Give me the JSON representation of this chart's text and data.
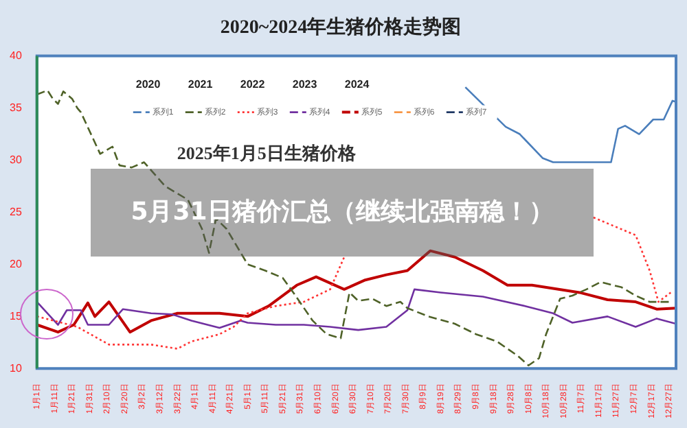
{
  "chart_data": {
    "type": "line",
    "title": "2020~2024年生猪价格走势图",
    "xlim": [
      "--01-01",
      "--12-31"
    ],
    "xticks": [
      {
        "value": "--01-01",
        "label": "1月1日"
      },
      {
        "value": "--01-11",
        "label": "1月11日"
      },
      {
        "value": "--01-21",
        "label": "1月21日"
      },
      {
        "value": "--01-31",
        "label": "1月31日"
      },
      {
        "value": "--02-10",
        "label": "2月10日"
      },
      {
        "value": "--02-20",
        "label": "2月20日"
      },
      {
        "value": "--03-02",
        "label": "3月2日"
      },
      {
        "value": "--03-12",
        "label": "3月12日"
      },
      {
        "value": "--03-22",
        "label": "3月22日"
      },
      {
        "value": "--04-01",
        "label": "4月1日"
      },
      {
        "value": "--04-11",
        "label": "4月11日"
      },
      {
        "value": "--04-21",
        "label": "4月21日"
      },
      {
        "value": "--05-01",
        "label": "5月1日"
      },
      {
        "value": "--05-11",
        "label": "5月11日"
      },
      {
        "value": "--05-21",
        "label": "5月21日"
      },
      {
        "value": "--05-31",
        "label": "5月31日"
      },
      {
        "value": "--06-10",
        "label": "6月10日"
      },
      {
        "value": "--06-20",
        "label": "6月20日"
      },
      {
        "value": "--06-30",
        "label": "6月30日"
      },
      {
        "value": "--07-10",
        "label": "7月10日"
      },
      {
        "value": "--07-20",
        "label": "7月20日"
      },
      {
        "value": "--07-30",
        "label": "7月30日"
      },
      {
        "value": "--08-09",
        "label": "8月9日"
      },
      {
        "value": "--08-19",
        "label": "8月19日"
      },
      {
        "value": "--08-29",
        "label": "8月29日"
      },
      {
        "value": "--09-08",
        "label": "9月8日"
      },
      {
        "value": "--09-18",
        "label": "9月18日"
      },
      {
        "value": "--09-28",
        "label": "9月28日"
      },
      {
        "value": "--10-08",
        "label": "10月8日"
      },
      {
        "value": "--10-18",
        "label": "10月18日"
      },
      {
        "value": "--10-28",
        "label": "10月28日"
      },
      {
        "value": "--11-07",
        "label": "11月7日"
      },
      {
        "value": "--11-17",
        "label": "11月17日"
      },
      {
        "value": "--11-27",
        "label": "11月27日"
      },
      {
        "value": "--12-07",
        "label": "12月7日"
      },
      {
        "value": "--12-17",
        "label": "12月17日"
      },
      {
        "value": "--12-27",
        "label": "12月27日"
      }
    ],
    "ylim": [
      10,
      40
    ],
    "yticks": [
      10,
      15,
      20,
      25,
      30,
      35,
      40
    ],
    "legend": "top",
    "grid": false,
    "annotations": [
      "2020",
      "2021",
      "2022",
      "2023",
      "2024",
      "2025年1月5日生猪价格",
      "5月31日猪价汇总（继续北强南稳！）"
    ],
    "series": [
      {
        "name": "系列1",
        "color": "#4a7ebb",
        "x": [
          "--09-02",
          "--09-25",
          "--10-03",
          "--10-16",
          "--10-22",
          "--11-24",
          "--11-28",
          "--12-02",
          "--12-10",
          "--12-18",
          "--12-24",
          "--12-29",
          "--12-31"
        ],
        "values": [
          37.0,
          33.2,
          32.5,
          30.2,
          29.8,
          29.8,
          33.0,
          33.3,
          32.5,
          33.9,
          33.9,
          35.7,
          35.6
        ]
      },
      {
        "name": "系列2",
        "color": "#4f6228",
        "line_style": "dashed",
        "x": [
          "--01-01",
          "--01-07",
          "--01-10",
          "--01-13",
          "--01-16",
          "--01-21",
          "--01-24",
          "--01-26",
          "--02-06",
          "--02-13",
          "--02-17",
          "--02-24",
          "--03-03",
          "--03-15",
          "--03-28",
          "--04-05",
          "--04-09",
          "--04-13",
          "--04-19",
          "--05-01",
          "--05-11",
          "--05-21",
          "--05-27",
          "--06-07",
          "--06-15",
          "--06-23",
          "--06-28",
          "--07-03",
          "--07-11",
          "--07-19",
          "--07-27",
          "--07-31",
          "--08-12",
          "--08-27",
          "--09-08",
          "--09-20",
          "--10-02",
          "--10-08",
          "--10-14",
          "--10-18",
          "--10-26",
          "--11-02",
          "--11-10",
          "--11-18",
          "--11-30",
          "--12-08",
          "--12-16",
          "--12-29"
        ],
        "values": [
          36.3,
          36.7,
          35.9,
          35.4,
          36.6,
          35.9,
          35.0,
          34.6,
          30.6,
          31.3,
          29.5,
          29.3,
          29.8,
          27.5,
          26.2,
          23.4,
          21.1,
          24.4,
          23.4,
          20.0,
          19.4,
          18.7,
          17.3,
          14.6,
          13.3,
          12.9,
          17.3,
          16.5,
          16.7,
          16.0,
          16.4,
          15.8,
          15.0,
          14.3,
          13.3,
          12.6,
          11.2,
          10.3,
          11.0,
          13.3,
          16.7,
          17.0,
          17.6,
          18.3,
          17.8,
          17.0,
          16.4,
          16.4
        ]
      },
      {
        "name": "系列3",
        "color": "#ff3333",
        "line_style": "dotted",
        "x": [
          "--01-01",
          "--01-24",
          "--02-11",
          "--03-07",
          "--03-22",
          "--03-30",
          "--04-15",
          "--04-23",
          "--05-01",
          "--05-17",
          "--06-02",
          "--06-17",
          "--06-25",
          "--06-29",
          "--07-07",
          "--07-19",
          "--08-04",
          "--08-19",
          "--09-04",
          "--09-26",
          "--10-27",
          "--11-14",
          "--12-08",
          "--12-16",
          "--12-21",
          "--12-28"
        ],
        "values": [
          15.0,
          14.0,
          12.3,
          12.3,
          11.9,
          12.6,
          13.3,
          14.0,
          15.3,
          16.0,
          16.4,
          17.6,
          20.7,
          null,
          null,
          null,
          null,
          null,
          null,
          null,
          null,
          24.5,
          22.8,
          19.4,
          16.4,
          17.3
        ]
      },
      {
        "name": "系列4",
        "color": "#7030a0",
        "x": [
          "--01-01",
          "--01-07",
          "--01-13",
          "--01-18",
          "--01-26",
          "--01-30",
          "--02-11",
          "--02-19",
          "--03-07",
          "--03-19",
          "--03-30",
          "--04-15",
          "--04-27",
          "--05-01",
          "--05-17",
          "--06-02",
          "--06-17",
          "--07-03",
          "--07-19",
          "--07-31",
          "--08-04",
          "--08-19",
          "--09-12",
          "--10-06",
          "--10-22",
          "--11-02",
          "--11-22",
          "--12-08",
          "--12-20",
          "--12-31"
        ],
        "values": [
          16.4,
          15.3,
          14.2,
          15.6,
          15.6,
          14.2,
          14.2,
          15.7,
          15.3,
          15.2,
          14.6,
          13.9,
          14.6,
          14.4,
          14.2,
          14.2,
          14.0,
          13.7,
          14.0,
          15.6,
          17.6,
          17.3,
          16.9,
          16.0,
          15.3,
          14.4,
          15.0,
          14.0,
          14.8,
          14.3
        ]
      },
      {
        "name": "系列5",
        "color": "#c00000",
        "x": [
          "--01-01",
          "--01-13",
          "--01-22",
          "--01-30",
          "--02-03",
          "--02-11",
          "--02-23",
          "--03-07",
          "--03-22",
          "--04-15",
          "--05-01",
          "--05-13",
          "--05-29",
          "--06-09",
          "--06-25",
          "--07-07",
          "--07-19",
          "--07-31",
          "--08-13",
          "--08-27",
          "--09-12",
          "--09-26",
          "--10-10",
          "--11-06",
          "--11-22",
          "--12-08",
          "--12-20",
          "--12-31"
        ],
        "values": [
          14.2,
          13.5,
          14.2,
          16.3,
          15.0,
          16.4,
          13.5,
          14.6,
          15.3,
          15.3,
          15.0,
          16.0,
          18.0,
          18.8,
          17.6,
          18.5,
          19.0,
          19.4,
          21.3,
          20.7,
          19.4,
          18.0,
          18.0,
          17.3,
          16.6,
          16.4,
          15.7,
          15.8
        ]
      },
      {
        "name": "系列6",
        "color": "#f79646",
        "line_style": "dashed"
      },
      {
        "name": "系列7",
        "color": "#1f3864",
        "line_style": "dashed"
      }
    ]
  }
}
